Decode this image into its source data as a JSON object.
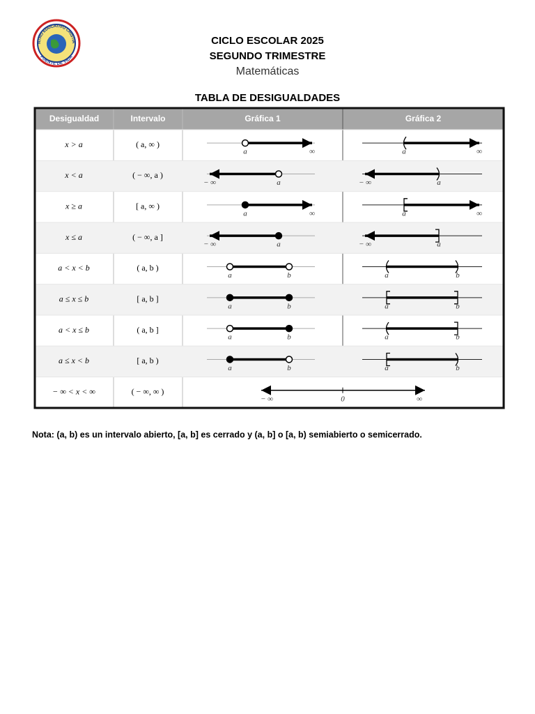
{
  "header": {
    "logo": {
      "top": "CENTRO EDUCATIVO CRISTIANO",
      "bottom": "FUENTE DE VIDA"
    },
    "lines": [
      "CICLO ESCOLAR 2025",
      "SEGUNDO TRIMESTRE",
      "Matemáticas"
    ],
    "table_title": "TABLA DE DESIGUALDADES"
  },
  "table": {
    "columns": [
      "Desigualdad",
      "Intervalo",
      "Gráfica 1",
      "Gráfica 2"
    ],
    "rows": [
      {
        "inequality": "x > a",
        "interval": "( a, ∞ )",
        "graph1": [
          "a",
          "∞"
        ],
        "graph2": [
          "a",
          "∞"
        ]
      },
      {
        "inequality": "x < a",
        "interval": "( − ∞, a )",
        "graph1": [
          "− ∞",
          "a"
        ],
        "graph2": [
          "− ∞",
          "a"
        ]
      },
      {
        "inequality": "x ≥ a",
        "interval": "[ a, ∞ )",
        "graph1": [
          "a",
          "∞"
        ],
        "graph2": [
          "a",
          "∞"
        ]
      },
      {
        "inequality": "x ≤ a",
        "interval": "( − ∞, a ]",
        "graph1": [
          "− ∞",
          "a"
        ],
        "graph2": [
          "− ∞",
          "a"
        ]
      },
      {
        "inequality": "a < x < b",
        "interval": "( a, b )",
        "graph1": [
          "a",
          "b"
        ],
        "graph2": [
          "a",
          "b"
        ]
      },
      {
        "inequality": "a ≤ x ≤ b",
        "interval": "[ a, b ]",
        "graph1": [
          "a",
          "b"
        ],
        "graph2": [
          "a",
          "b"
        ]
      },
      {
        "inequality": "a < x ≤ b",
        "interval": "( a, b ]",
        "graph1": [
          "a",
          "b"
        ],
        "graph2": [
          "a",
          "b"
        ]
      },
      {
        "inequality": "a ≤ x < b",
        "interval": "[ a, b )",
        "graph1": [
          "a",
          "b"
        ],
        "graph2": [
          "a",
          "b"
        ]
      },
      {
        "inequality": "− ∞ < x < ∞",
        "interval": "( − ∞, ∞ )",
        "graph": [
          "− ∞",
          "0",
          "∞"
        ]
      }
    ]
  },
  "note": "Nota: (a, b) es un intervalo abierto, [a, b] es cerrado y (a, b] o [a, b) semiabierto o semicerrado."
}
